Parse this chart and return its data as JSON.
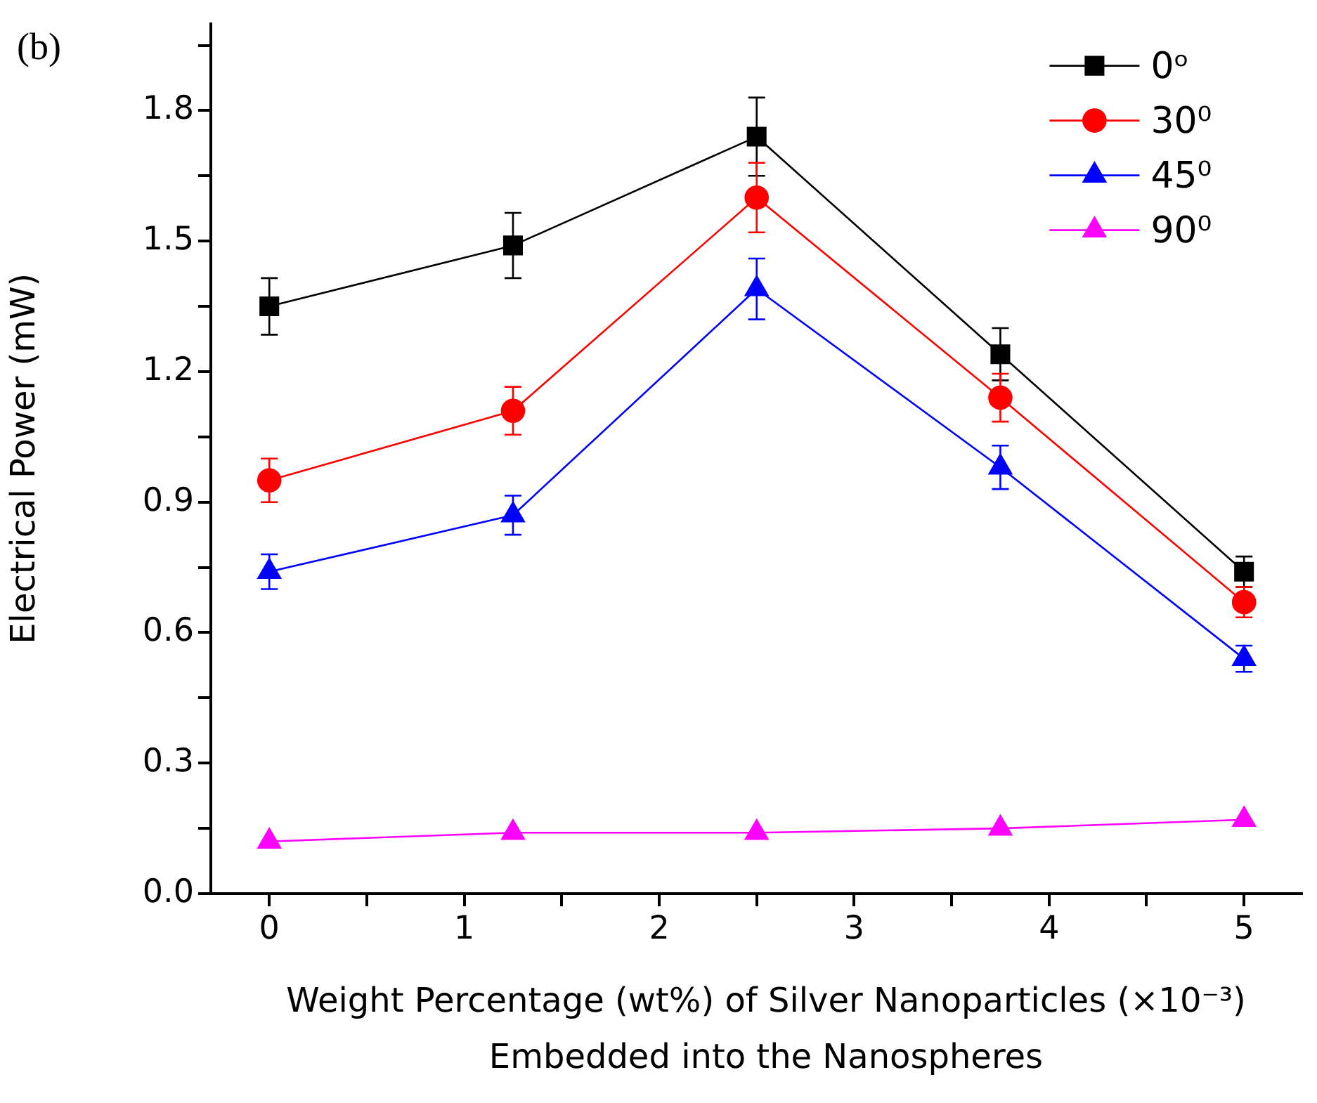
{
  "chart_data": {
    "type": "line",
    "xlabel": "Weight Percentage (wt%) of Silver Nanoparticles (×10⁻³) Embedded into the Nanospheres",
    "ylabel": "Electrical Power (mW)",
    "annotations": [
      "(b)"
    ],
    "x": [
      0,
      1.25,
      2.5,
      3.75,
      5
    ],
    "series": [
      {
        "name": "0ᵒ",
        "color": "#000000",
        "marker": "square",
        "values": [
          1.35,
          1.49,
          1.74,
          1.24,
          0.74
        ],
        "errors": [
          0.065,
          0.075,
          0.09,
          0.06,
          0.035
        ]
      },
      {
        "name": "30⁰",
        "color": "#ff0000",
        "marker": "circle",
        "values": [
          0.95,
          1.11,
          1.6,
          1.14,
          0.67
        ],
        "errors": [
          0.05,
          0.055,
          0.08,
          0.055,
          0.035
        ]
      },
      {
        "name": "45⁰",
        "color": "#0000ff",
        "marker": "triangle",
        "values": [
          0.74,
          0.87,
          1.39,
          0.98,
          0.54
        ],
        "errors": [
          0.04,
          0.045,
          0.07,
          0.05,
          0.03
        ]
      },
      {
        "name": "90⁰",
        "color": "#ff00ff",
        "marker": "triangle",
        "values": [
          0.12,
          0.14,
          0.14,
          0.15,
          0.17
        ]
      }
    ],
    "xlim": [
      -0.3,
      5.3
    ],
    "xticks": [
      0,
      {
        "value": 0.5,
        "label": null
      },
      1,
      {
        "value": 1.5,
        "label": null
      },
      2,
      {
        "value": 2.5,
        "label": null
      },
      3,
      {
        "value": 3.5,
        "label": null
      },
      4,
      {
        "value": 4.5,
        "label": null
      },
      5
    ],
    "ylim": [
      0,
      2.0
    ],
    "yticks": [
      {
        "value": 0,
        "label": "0.0"
      },
      {
        "value": 0.15,
        "label": null
      },
      {
        "value": 0.3,
        "label": "0.3"
      },
      {
        "value": 0.45,
        "label": null
      },
      {
        "value": 0.6,
        "label": "0.6"
      },
      {
        "value": 0.75,
        "label": null
      },
      {
        "value": 0.9,
        "label": "0.9"
      },
      {
        "value": 1.05,
        "label": null
      },
      {
        "value": 1.2,
        "label": "1.2"
      },
      {
        "value": 1.35,
        "label": null
      },
      {
        "value": 1.5,
        "label": "1.5"
      },
      {
        "value": 1.65,
        "label": null
      },
      {
        "value": 1.8,
        "label": "1.8"
      },
      {
        "value": 1.95,
        "label": null
      }
    ],
    "grid": false,
    "legend": "top right"
  }
}
